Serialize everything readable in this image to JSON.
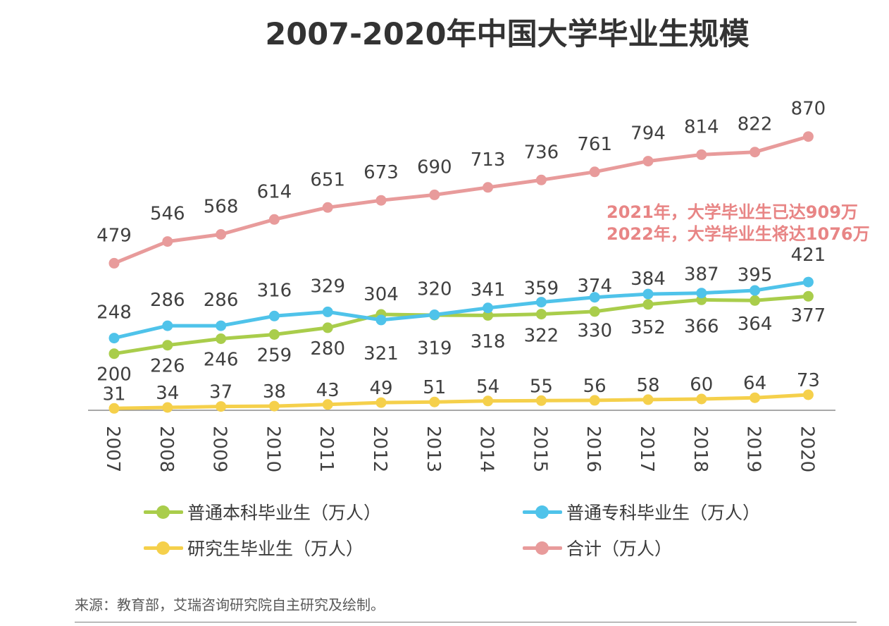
{
  "chart_data": {
    "type": "line",
    "title": "2007-2020年中国大学毕业生规模",
    "categories": [
      "2007",
      "2008",
      "2009",
      "2010",
      "2011",
      "2012",
      "2013",
      "2014",
      "2015",
      "2016",
      "2017",
      "2018",
      "2019",
      "2020"
    ],
    "series": [
      {
        "name": "普通本科毕业生（万人）",
        "color": "#a9cd4b",
        "values": [
          200,
          226,
          246,
          259,
          280,
          321,
          319,
          318,
          322,
          330,
          352,
          366,
          364,
          377
        ]
      },
      {
        "name": "普通专科毕业生（万人）",
        "color": "#4fc3ea",
        "values": [
          248,
          286,
          286,
          316,
          329,
          304,
          320,
          341,
          359,
          374,
          384,
          387,
          395,
          421
        ]
      },
      {
        "name": "研究生毕业生（万人）",
        "color": "#f5d04b",
        "values": [
          31,
          34,
          37,
          38,
          43,
          49,
          51,
          54,
          55,
          56,
          58,
          60,
          64,
          73
        ]
      },
      {
        "name": "合计（万人）",
        "color": "#e89b9b",
        "values": [
          479,
          546,
          568,
          614,
          651,
          673,
          690,
          713,
          736,
          761,
          794,
          814,
          822,
          870
        ]
      }
    ],
    "annotations": [
      "2021年，大学毕业生已达909万",
      "2022年，大学毕业生将达1076万"
    ],
    "legend_position": "bottom",
    "grid": false
  },
  "source": "来源：教育部，艾瑞咨询研究院自主研究及绘制。"
}
